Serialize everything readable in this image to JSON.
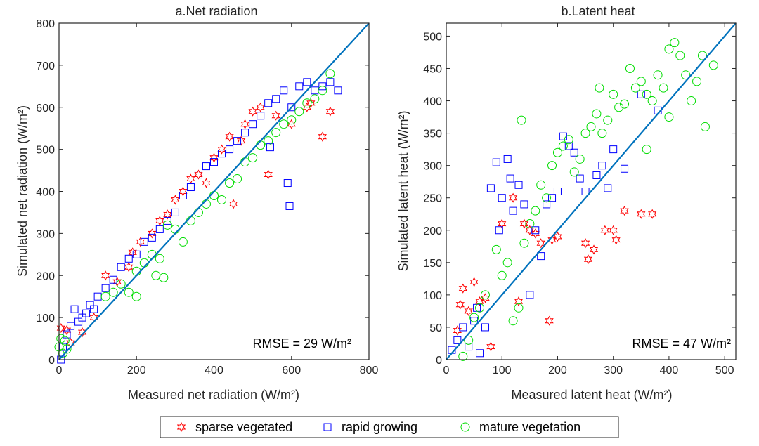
{
  "colors": {
    "sparse": "#ff0000",
    "rapid": "#0000ff",
    "mature": "#00dd00",
    "line": "#0072bd",
    "axis": "#262626"
  },
  "legend": {
    "items": [
      {
        "label": "sparse vegetated",
        "marker": "hexagram",
        "color": "#ff0000"
      },
      {
        "label": "rapid growing",
        "marker": "square",
        "color": "#0000ff"
      },
      {
        "label": "mature vegetation",
        "marker": "circle",
        "color": "#00dd00"
      }
    ]
  },
  "chart_data": [
    {
      "type": "scatter",
      "title": "a.Net radiation",
      "xlabel": "Measured net radiation (W/m²)",
      "ylabel": "Simulated net radiation (W/m²)",
      "xlim": [
        0,
        800
      ],
      "ylim": [
        0,
        800
      ],
      "xticks": [
        0,
        200,
        400,
        600,
        800
      ],
      "yticks": [
        0,
        100,
        200,
        300,
        400,
        500,
        600,
        700,
        800
      ],
      "annotation": "RMSE = 29 W/m²",
      "one_to_one_line": true,
      "series": [
        {
          "name": "sparse vegetated",
          "points": [
            [
              5,
              75
            ],
            [
              20,
              70
            ],
            [
              30,
              40
            ],
            [
              60,
              65
            ],
            [
              90,
              100
            ],
            [
              120,
              200
            ],
            [
              150,
              185
            ],
            [
              180,
              220
            ],
            [
              190,
              255
            ],
            [
              210,
              280
            ],
            [
              240,
              300
            ],
            [
              260,
              330
            ],
            [
              280,
              345
            ],
            [
              300,
              380
            ],
            [
              320,
              400
            ],
            [
              340,
              430
            ],
            [
              360,
              440
            ],
            [
              380,
              420
            ],
            [
              400,
              480
            ],
            [
              420,
              500
            ],
            [
              440,
              530
            ],
            [
              450,
              370
            ],
            [
              470,
              520
            ],
            [
              480,
              560
            ],
            [
              500,
              590
            ],
            [
              520,
              600
            ],
            [
              540,
              440
            ],
            [
              560,
              580
            ],
            [
              600,
              560
            ],
            [
              640,
              600
            ],
            [
              680,
              530
            ],
            [
              700,
              590
            ],
            [
              650,
              610
            ]
          ]
        },
        {
          "name": "rapid growing",
          "points": [
            [
              5,
              0
            ],
            [
              10,
              30
            ],
            [
              20,
              60
            ],
            [
              30,
              80
            ],
            [
              40,
              120
            ],
            [
              50,
              90
            ],
            [
              60,
              100
            ],
            [
              70,
              110
            ],
            [
              80,
              130
            ],
            [
              90,
              120
            ],
            [
              100,
              150
            ],
            [
              120,
              170
            ],
            [
              140,
              190
            ],
            [
              160,
              220
            ],
            [
              180,
              240
            ],
            [
              200,
              250
            ],
            [
              220,
              280
            ],
            [
              240,
              290
            ],
            [
              260,
              310
            ],
            [
              280,
              330
            ],
            [
              300,
              350
            ],
            [
              320,
              390
            ],
            [
              340,
              410
            ],
            [
              360,
              440
            ],
            [
              380,
              460
            ],
            [
              400,
              470
            ],
            [
              420,
              490
            ],
            [
              440,
              500
            ],
            [
              460,
              520
            ],
            [
              480,
              540
            ],
            [
              500,
              560
            ],
            [
              520,
              580
            ],
            [
              540,
              610
            ],
            [
              560,
              620
            ],
            [
              580,
              640
            ],
            [
              600,
              600
            ],
            [
              620,
              650
            ],
            [
              640,
              660
            ],
            [
              660,
              640
            ],
            [
              680,
              650
            ],
            [
              700,
              660
            ],
            [
              720,
              640
            ],
            [
              590,
              420
            ],
            [
              595,
              365
            ],
            [
              545,
              505
            ]
          ]
        },
        {
          "name": "mature vegetation",
          "points": [
            [
              0,
              30
            ],
            [
              5,
              50
            ],
            [
              10,
              15
            ],
            [
              15,
              45
            ],
            [
              20,
              25
            ],
            [
              120,
              150
            ],
            [
              140,
              160
            ],
            [
              160,
              180
            ],
            [
              180,
              160
            ],
            [
              200,
              210
            ],
            [
              220,
              230
            ],
            [
              240,
              250
            ],
            [
              260,
              240
            ],
            [
              280,
              320
            ],
            [
              300,
              310
            ],
            [
              320,
              280
            ],
            [
              340,
              330
            ],
            [
              360,
              350
            ],
            [
              380,
              370
            ],
            [
              400,
              390
            ],
            [
              420,
              380
            ],
            [
              440,
              420
            ],
            [
              460,
              430
            ],
            [
              480,
              470
            ],
            [
              500,
              480
            ],
            [
              520,
              510
            ],
            [
              540,
              520
            ],
            [
              560,
              540
            ],
            [
              580,
              560
            ],
            [
              600,
              570
            ],
            [
              620,
              590
            ],
            [
              640,
              610
            ],
            [
              660,
              620
            ],
            [
              680,
              640
            ],
            [
              700,
              680
            ],
            [
              200,
              150
            ],
            [
              250,
              200
            ],
            [
              270,
              195
            ]
          ]
        }
      ]
    },
    {
      "type": "scatter",
      "title": "b.Latent heat",
      "xlabel": "Measured latent heat (W/m²)",
      "ylabel": "Simulated latent heat (W/m²)",
      "xlim": [
        0,
        520
      ],
      "ylim": [
        0,
        520
      ],
      "xticks": [
        0,
        100,
        200,
        300,
        400,
        500
      ],
      "yticks": [
        0,
        50,
        100,
        150,
        200,
        250,
        300,
        350,
        400,
        450,
        500
      ],
      "annotation": "RMSE = 47 W/m²",
      "one_to_one_line": true,
      "series": [
        {
          "name": "sparse vegetated",
          "points": [
            [
              20,
              45
            ],
            [
              25,
              85
            ],
            [
              30,
              110
            ],
            [
              40,
              75
            ],
            [
              50,
              120
            ],
            [
              60,
              90
            ],
            [
              70,
              95
            ],
            [
              80,
              20
            ],
            [
              100,
              210
            ],
            [
              120,
              250
            ],
            [
              130,
              90
            ],
            [
              140,
              210
            ],
            [
              150,
              200
            ],
            [
              160,
              195
            ],
            [
              170,
              180
            ],
            [
              185,
              60
            ],
            [
              190,
              185
            ],
            [
              200,
              190
            ],
            [
              250,
              180
            ],
            [
              255,
              155
            ],
            [
              265,
              170
            ],
            [
              285,
              200
            ],
            [
              300,
              200
            ],
            [
              305,
              185
            ],
            [
              320,
              230
            ],
            [
              350,
              225
            ],
            [
              370,
              225
            ]
          ]
        },
        {
          "name": "rapid growing",
          "points": [
            [
              10,
              15
            ],
            [
              20,
              30
            ],
            [
              30,
              50
            ],
            [
              40,
              20
            ],
            [
              50,
              60
            ],
            [
              55,
              80
            ],
            [
              60,
              10
            ],
            [
              70,
              50
            ],
            [
              80,
              265
            ],
            [
              90,
              305
            ],
            [
              95,
              200
            ],
            [
              100,
              250
            ],
            [
              110,
              310
            ],
            [
              115,
              280
            ],
            [
              120,
              230
            ],
            [
              130,
              270
            ],
            [
              140,
              240
            ],
            [
              150,
              100
            ],
            [
              160,
              200
            ],
            [
              170,
              160
            ],
            [
              180,
              240
            ],
            [
              190,
              250
            ],
            [
              200,
              260
            ],
            [
              210,
              345
            ],
            [
              220,
              330
            ],
            [
              230,
              320
            ],
            [
              240,
              280
            ],
            [
              250,
              260
            ],
            [
              270,
              285
            ],
            [
              280,
              300
            ],
            [
              290,
              265
            ],
            [
              300,
              325
            ],
            [
              320,
              295
            ],
            [
              350,
              410
            ],
            [
              380,
              385
            ]
          ]
        },
        {
          "name": "mature vegetation",
          "points": [
            [
              30,
              5
            ],
            [
              40,
              30
            ],
            [
              50,
              65
            ],
            [
              60,
              80
            ],
            [
              70,
              100
            ],
            [
              90,
              170
            ],
            [
              100,
              130
            ],
            [
              110,
              150
            ],
            [
              120,
              60
            ],
            [
              130,
              80
            ],
            [
              135,
              370
            ],
            [
              140,
              180
            ],
            [
              150,
              210
            ],
            [
              160,
              230
            ],
            [
              170,
              270
            ],
            [
              180,
              250
            ],
            [
              190,
              300
            ],
            [
              200,
              320
            ],
            [
              210,
              330
            ],
            [
              220,
              340
            ],
            [
              230,
              290
            ],
            [
              240,
              310
            ],
            [
              250,
              350
            ],
            [
              260,
              360
            ],
            [
              270,
              380
            ],
            [
              275,
              420
            ],
            [
              280,
              350
            ],
            [
              290,
              370
            ],
            [
              300,
              410
            ],
            [
              310,
              390
            ],
            [
              320,
              395
            ],
            [
              330,
              450
            ],
            [
              340,
              420
            ],
            [
              350,
              430
            ],
            [
              360,
              410
            ],
            [
              370,
              400
            ],
            [
              380,
              440
            ],
            [
              390,
              420
            ],
            [
              400,
              480
            ],
            [
              410,
              490
            ],
            [
              420,
              470
            ],
            [
              430,
              440
            ],
            [
              440,
              400
            ],
            [
              450,
              430
            ],
            [
              460,
              470
            ],
            [
              465,
              360
            ],
            [
              480,
              455
            ],
            [
              360,
              325
            ],
            [
              400,
              375
            ]
          ]
        }
      ]
    }
  ]
}
